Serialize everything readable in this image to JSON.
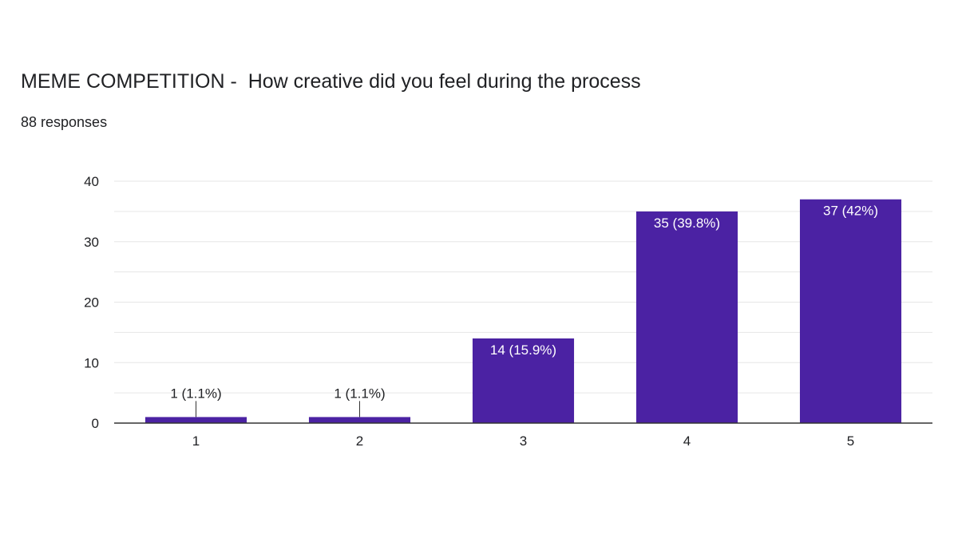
{
  "form": {
    "question": "MEME COMPETITION -  How creative did you feel during the process",
    "responses": "88 responses"
  },
  "colors": {
    "bar": "#4b22a3",
    "gridline": "#e6e6e6",
    "axis": "#333333"
  },
  "chart_data": {
    "type": "bar",
    "title": "MEME COMPETITION -  How creative did you feel during the process",
    "categories": [
      "1",
      "2",
      "3",
      "4",
      "5"
    ],
    "values": [
      1,
      1,
      14,
      35,
      37
    ],
    "data_labels": [
      "1 (1.1%)",
      "1 (1.1%)",
      "14 (15.9%)",
      "35 (39.8%)",
      "37 (42%)"
    ],
    "y_ticks": [
      0,
      10,
      20,
      30,
      40
    ],
    "ylim": [
      0,
      40
    ],
    "grid": true,
    "xlabel": "",
    "ylabel": ""
  }
}
